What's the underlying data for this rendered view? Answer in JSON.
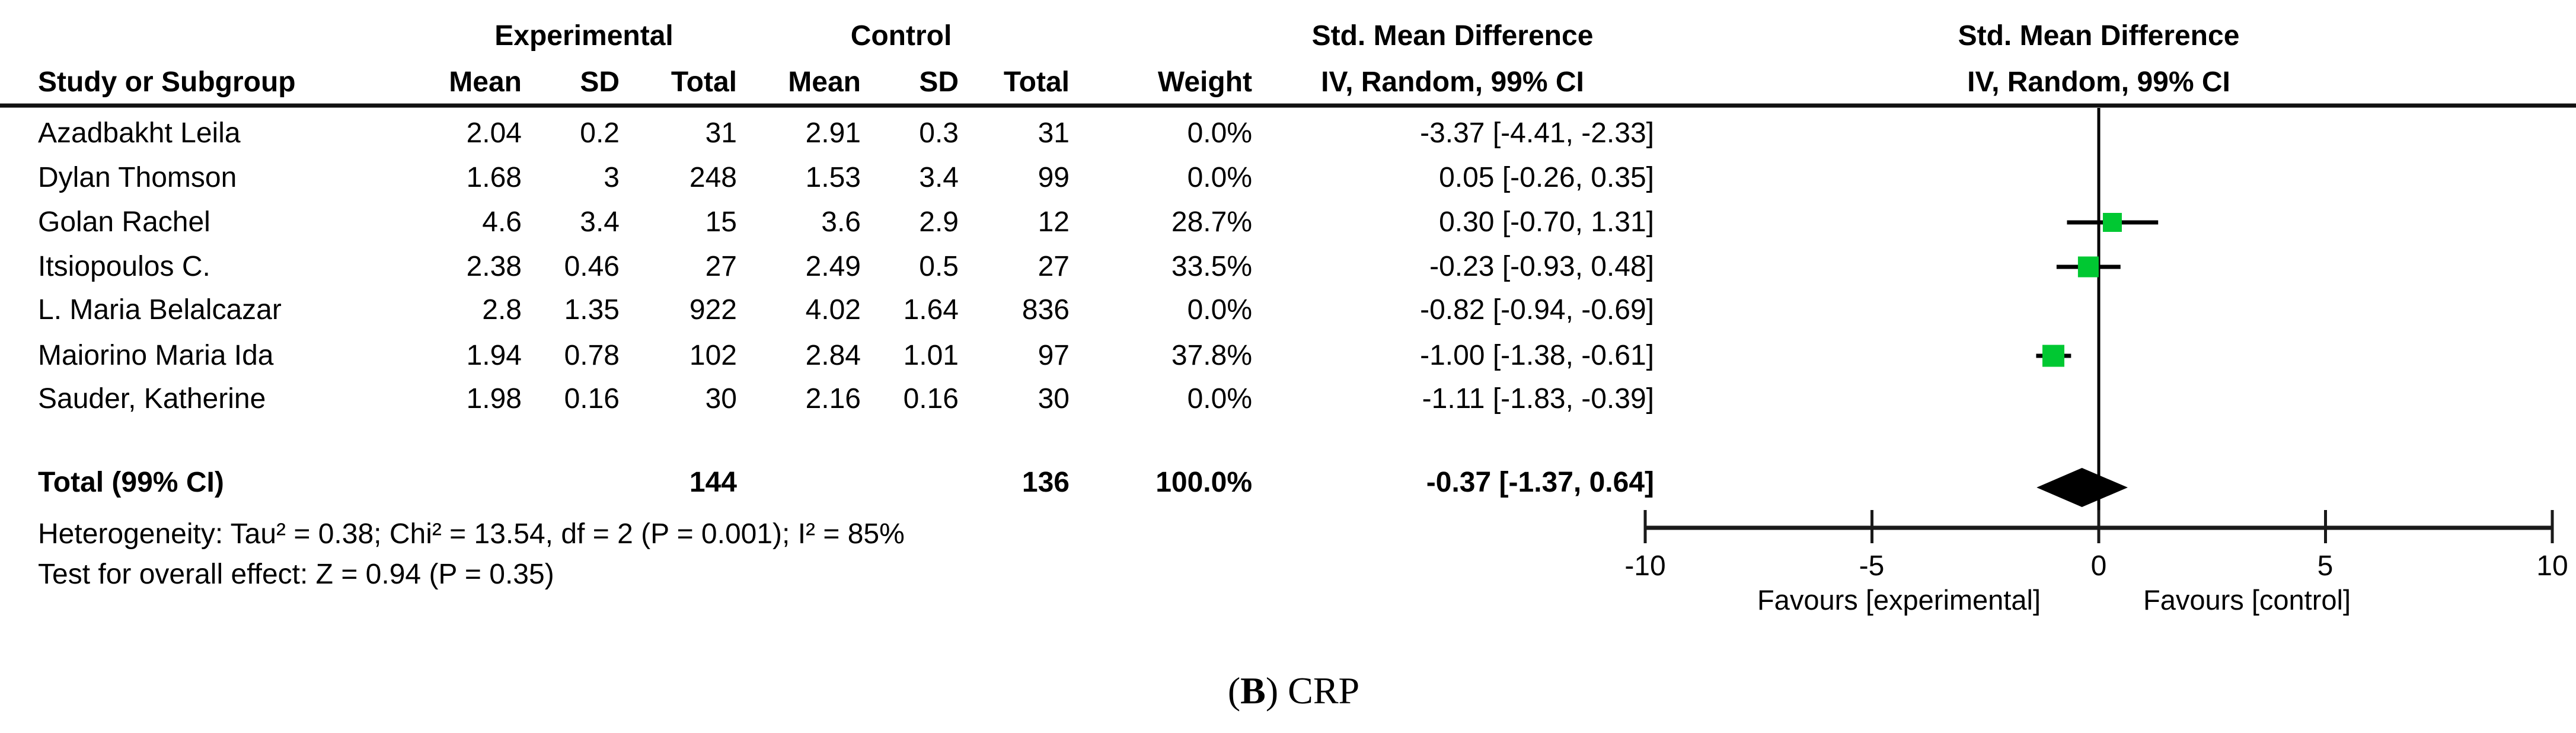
{
  "figure": {
    "caption": {
      "open": "(",
      "letter": "B",
      "close": ")",
      "text": " CRP"
    }
  },
  "table": {
    "group_headers": {
      "experimental": "Experimental",
      "control": "Control",
      "smd_left": "Std. Mean Difference",
      "smd_right": "Std. Mean Difference"
    },
    "col_headers": {
      "study": "Study or Subgroup",
      "mean_e": "Mean",
      "sd_e": "SD",
      "total_e": "Total",
      "mean_c": "Mean",
      "sd_c": "SD",
      "total_c": "Total",
      "weight": "Weight",
      "iv_left": "IV, Random, 99% CI",
      "iv_right": "IV, Random, 99% CI"
    }
  },
  "footnotes": {
    "heterogeneity": "Heterogeneity: Tau² = 0.38; Chi² = 13.54, df = 2 (P = 0.001); I² = 85%",
    "overall_effect": "Test for overall effect: Z = 0.94 (P = 0.35)"
  },
  "axis": {
    "tick_labels": [
      "-10",
      "-5",
      "0",
      "5",
      "10"
    ],
    "favours_left": "Favours [experimental]",
    "favours_right": "Favours [control]"
  },
  "colors": {
    "square": "#00C832",
    "diamond": "#000000",
    "line": "#000000",
    "axis": "#1a1a1a"
  },
  "chart_data": {
    "type": "forest",
    "title": "Std. Mean Difference",
    "method": "IV, Random, 99% CI",
    "panel_label": "(B) CRP",
    "xlim": [
      -10,
      10
    ],
    "ticks": [
      -10,
      -5,
      0,
      5,
      10
    ],
    "xlabel_left": "Favours [experimental]",
    "xlabel_right": "Favours [control]",
    "studies": [
      {
        "study": "Azadbakht Leila",
        "mean_e": "2.04",
        "sd_e": "0.2",
        "total_e": "31",
        "mean_c": "2.91",
        "sd_c": "0.3",
        "total_c": "31",
        "weight": "0.0%",
        "ci_text": "-3.37 [-4.41, -2.33]",
        "est": -3.37,
        "lo": -4.41,
        "hi": -2.33,
        "weight_pct": 0.0
      },
      {
        "study": "Dylan Thomson",
        "mean_e": "1.68",
        "sd_e": "3",
        "total_e": "248",
        "mean_c": "1.53",
        "sd_c": "3.4",
        "total_c": "99",
        "weight": "0.0%",
        "ci_text": "0.05 [-0.26, 0.35]",
        "est": 0.05,
        "lo": -0.26,
        "hi": 0.35,
        "weight_pct": 0.0
      },
      {
        "study": "Golan Rachel",
        "mean_e": "4.6",
        "sd_e": "3.4",
        "total_e": "15",
        "mean_c": "3.6",
        "sd_c": "2.9",
        "total_c": "12",
        "weight": "28.7%",
        "ci_text": "0.30 [-0.70, 1.31]",
        "est": 0.3,
        "lo": -0.7,
        "hi": 1.31,
        "weight_pct": 28.7
      },
      {
        "study": "Itsiopoulos C.",
        "mean_e": "2.38",
        "sd_e": "0.46",
        "total_e": "27",
        "mean_c": "2.49",
        "sd_c": "0.5",
        "total_c": "27",
        "weight": "33.5%",
        "ci_text": "-0.23 [-0.93, 0.48]",
        "est": -0.23,
        "lo": -0.93,
        "hi": 0.48,
        "weight_pct": 33.5
      },
      {
        "study": "L. Maria Belalcazar",
        "mean_e": "2.8",
        "sd_e": "1.35",
        "total_e": "922",
        "mean_c": "4.02",
        "sd_c": "1.64",
        "total_c": "836",
        "weight": "0.0%",
        "ci_text": "-0.82 [-0.94, -0.69]",
        "est": -0.82,
        "lo": -0.94,
        "hi": -0.69,
        "weight_pct": 0.0
      },
      {
        "study": "Maiorino Maria Ida",
        "mean_e": "1.94",
        "sd_e": "0.78",
        "total_e": "102",
        "mean_c": "2.84",
        "sd_c": "1.01",
        "total_c": "97",
        "weight": "37.8%",
        "ci_text": "-1.00 [-1.38, -0.61]",
        "est": -1.0,
        "lo": -1.38,
        "hi": -0.61,
        "weight_pct": 37.8
      },
      {
        "study": "Sauder, Katherine",
        "mean_e": "1.98",
        "sd_e": "0.16",
        "total_e": "30",
        "mean_c": "2.16",
        "sd_c": "0.16",
        "total_c": "30",
        "weight": "0.0%",
        "ci_text": "-1.11 [-1.83, -0.39]",
        "est": -1.11,
        "lo": -1.83,
        "hi": -0.39,
        "weight_pct": 0.0
      }
    ],
    "total": {
      "label": "Total (99% CI)",
      "total_e": "144",
      "total_c": "136",
      "weight": "100.0%",
      "ci_text": "-0.37 [-1.37, 0.64]",
      "est": -0.37,
      "lo": -1.37,
      "hi": 0.64
    }
  }
}
